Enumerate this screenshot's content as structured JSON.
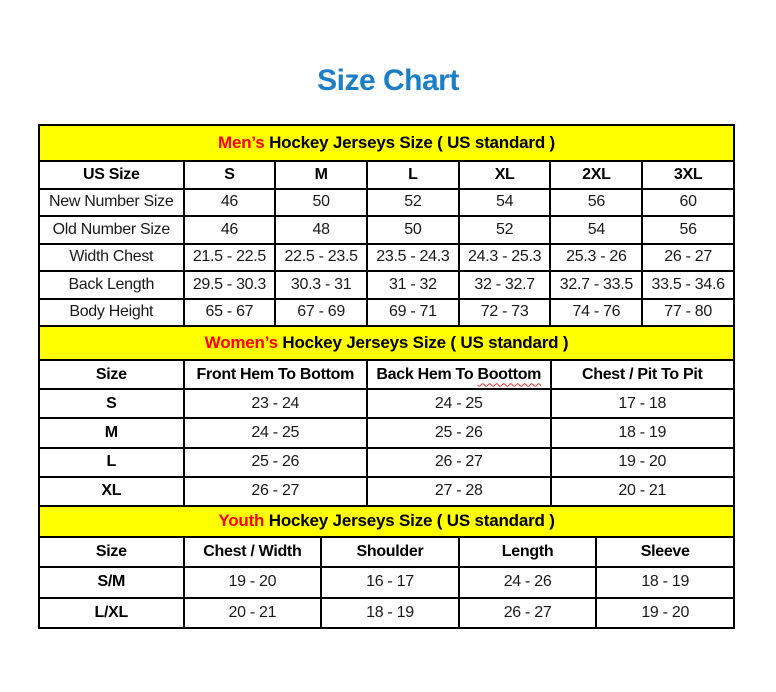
{
  "page": {
    "title": "Size Chart",
    "colors": {
      "title_blue": "#1B7EC6",
      "band_yellow": "#FFFF00",
      "highlight_red": "#FF0000",
      "border_black": "#000000"
    }
  },
  "chart_data": {
    "type": "table",
    "title": "Size Chart"
  },
  "sections": [
    {
      "id": "mens",
      "band": {
        "highlight": "Men’s",
        "rest": " Hockey Jerseys Size ( US standard )"
      },
      "header": [
        "US Size",
        "S",
        "M",
        "L",
        "XL",
        "2XL",
        "3XL"
      ],
      "rows": [
        [
          "New Number Size",
          "46",
          "50",
          "52",
          "54",
          "56",
          "60"
        ],
        [
          "Old Number Size",
          "46",
          "48",
          "50",
          "52",
          "54",
          "56"
        ],
        [
          "Width Chest",
          "21.5 - 22.5",
          "22.5 - 23.5",
          "23.5 - 24.3",
          "24.3 - 25.3",
          "25.3 - 26",
          "26 - 27"
        ],
        [
          "Back Length",
          "29.5 - 30.3",
          "30.3 - 31",
          "31 - 32",
          "32 - 32.7",
          "32.7 - 33.5",
          "33.5 - 34.6"
        ],
        [
          "Body Height",
          "65 - 67",
          "67 - 69",
          "69 - 71",
          "72 - 73",
          "74 - 76",
          "77 - 80"
        ]
      ],
      "bold_row_labels": false
    },
    {
      "id": "womens",
      "band": {
        "highlight": "Women’s",
        "rest": " Hockey Jerseys Size ( US standard )"
      },
      "header": [
        "Size",
        "Front Hem To Bottom",
        "Back Hem To Boottom",
        "Chest / Pit To Pit"
      ],
      "header_squiggle": {
        "col": 2,
        "before": "Back Hem To ",
        "word": "Boottom"
      },
      "rows": [
        [
          "S",
          "23 - 24",
          "24 - 25",
          "17 - 18"
        ],
        [
          "M",
          "24 - 25",
          "25 - 26",
          "18 - 19"
        ],
        [
          "L",
          "25 - 26",
          "26 - 27",
          "19 - 20"
        ],
        [
          "XL",
          "26 - 27",
          "27 - 28",
          "20 - 21"
        ]
      ],
      "bold_row_labels": true
    },
    {
      "id": "youth",
      "band": {
        "highlight": "Youth",
        "rest": " Hockey Jerseys Size ( US standard )"
      },
      "header": [
        "Size",
        "Chest / Width",
        "Shoulder",
        "Length",
        "Sleeve"
      ],
      "rows": [
        [
          "S/M",
          "19 - 20",
          "16 - 17",
          "24 - 26",
          "18 - 19"
        ],
        [
          "L/XL",
          "20 - 21",
          "18 - 19",
          "26 - 27",
          "19 - 20"
        ]
      ],
      "bold_row_labels": true
    }
  ]
}
